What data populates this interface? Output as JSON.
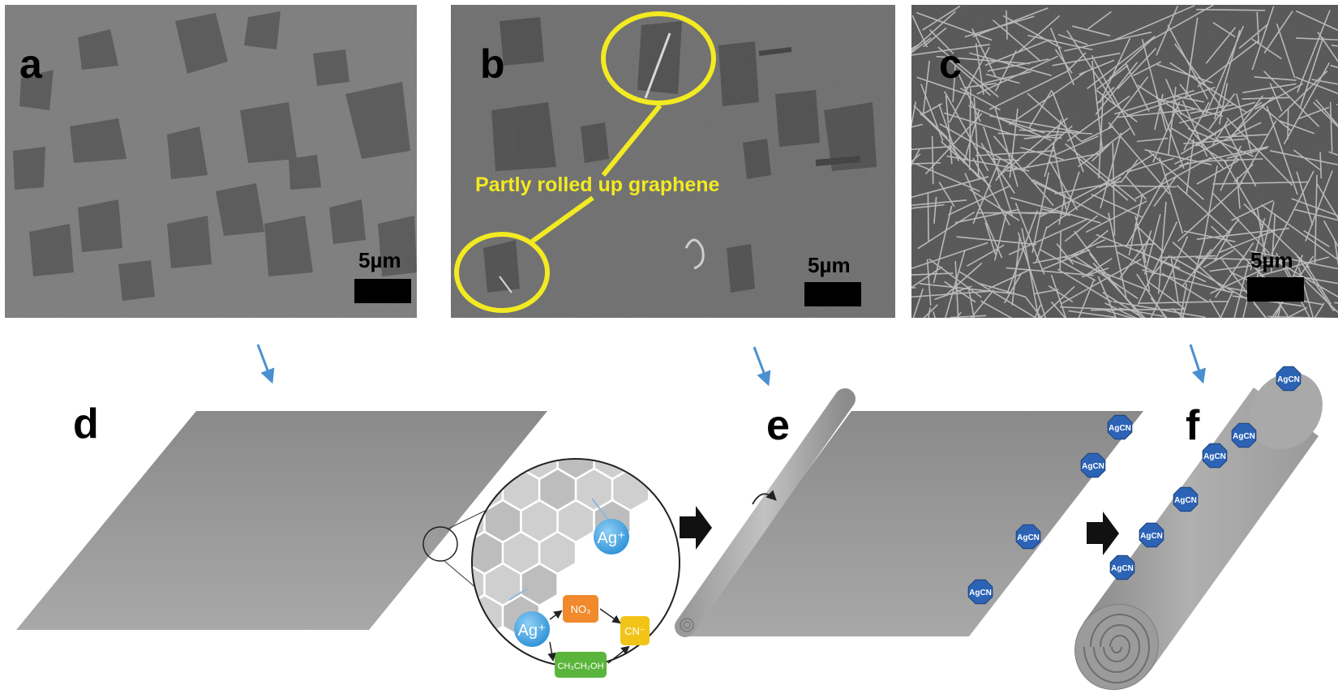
{
  "panels": {
    "a": {
      "label": "a",
      "scale_bar": "5µm"
    },
    "b": {
      "label": "b",
      "scale_bar": "5µm",
      "annotation": "Partly rolled up graphene"
    },
    "c": {
      "label": "c",
      "scale_bar": "5µm"
    },
    "d": {
      "label": "d"
    },
    "e": {
      "label": "e"
    },
    "f": {
      "label": "f"
    }
  },
  "inset": {
    "ag_ion_1": "Ag⁺",
    "ag_ion_2": "Ag⁺",
    "nitrate": "NO₃",
    "cyanide": "CN⁻",
    "ethanol": "CH₃CH₂OH"
  },
  "agcn_label": "AgCN",
  "colors": {
    "sem_background": "#6f6f6f",
    "annotation_yellow": "#f2ea22",
    "pointer_arrow": "#4a90d0",
    "sheet_gray": "#8e8e8e",
    "agcn_blue": "#2c63b5"
  }
}
